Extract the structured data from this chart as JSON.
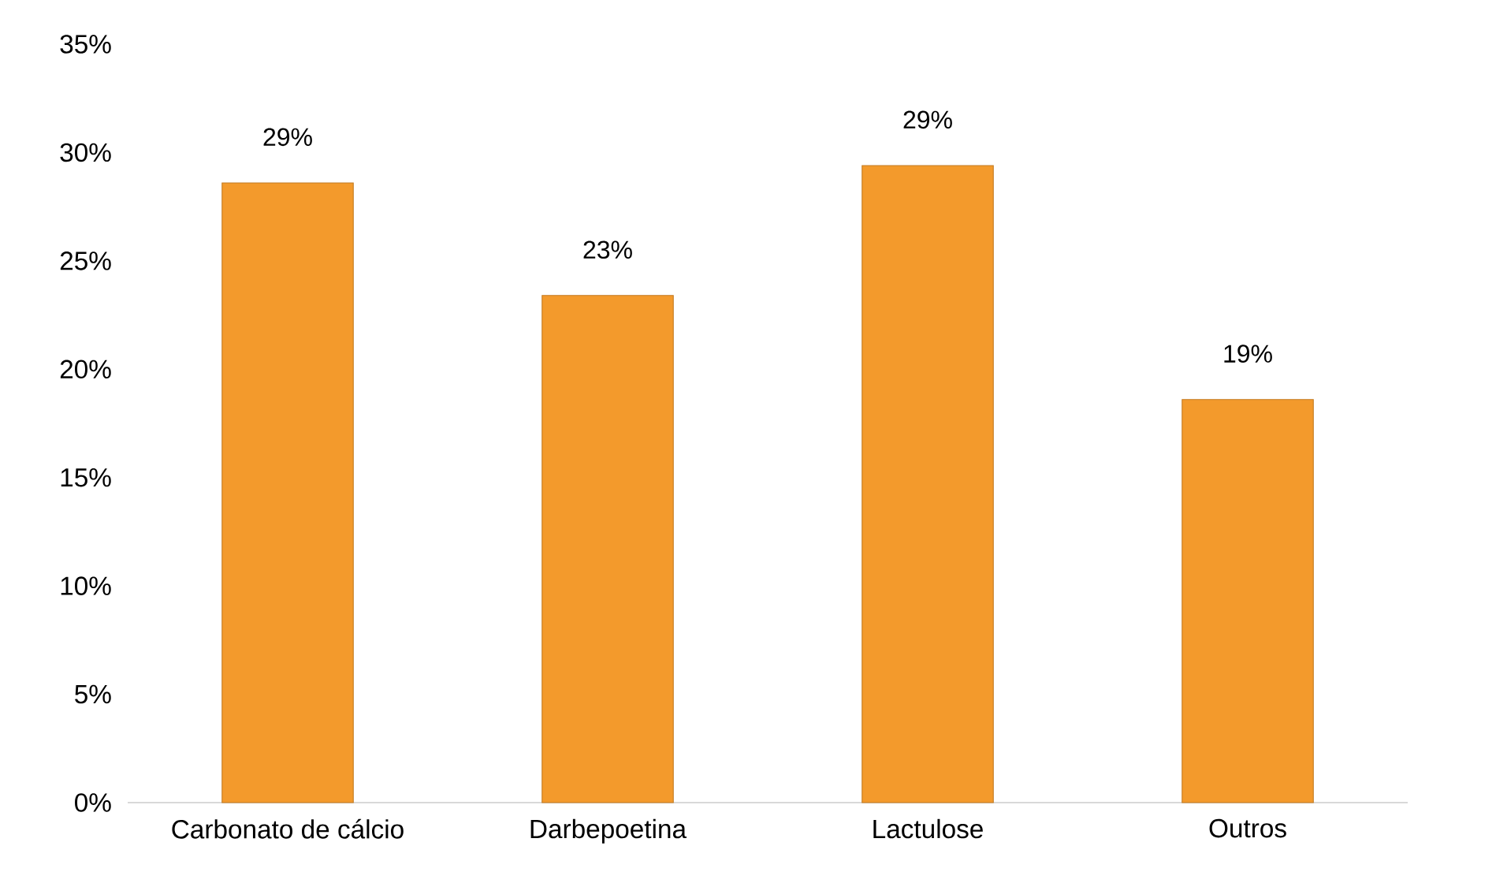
{
  "chart_data": {
    "type": "bar",
    "categories": [
      "Carbonato de cálcio",
      "Darbepoetina",
      "Lactulose",
      "Outros"
    ],
    "values": [
      28.6,
      23.4,
      29.4,
      18.6
    ],
    "value_labels": [
      "29%",
      "23%",
      "29%",
      "19%"
    ],
    "color": "#f39a2c",
    "ylim": [
      0,
      35
    ],
    "yticks": [
      {
        "value": 0,
        "label": "0%"
      },
      {
        "value": 5,
        "label": "5%"
      },
      {
        "value": 10,
        "label": "10%"
      },
      {
        "value": 15,
        "label": "15%"
      },
      {
        "value": 20,
        "label": "20%"
      },
      {
        "value": 25,
        "label": "25%"
      },
      {
        "value": 30,
        "label": "30%"
      },
      {
        "value": 35,
        "label": "35%"
      }
    ]
  }
}
